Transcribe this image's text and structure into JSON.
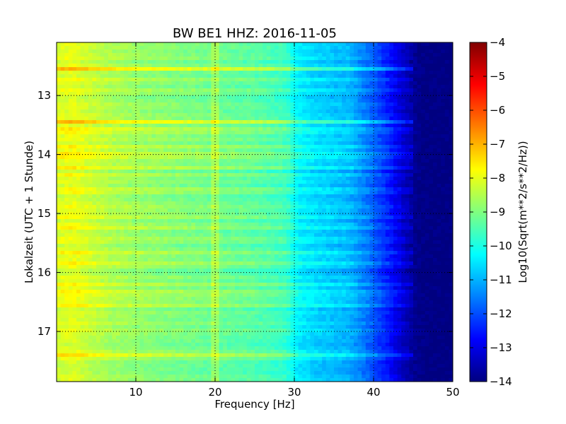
{
  "chart_data": {
    "type": "heatmap",
    "title": "BW BE1 HHZ: 2016-11-05",
    "xlabel": "Frequency [Hz]",
    "ylabel": "Lokalzeit (UTC + 1 Stunde)",
    "xlim": [
      0,
      50
    ],
    "ylim": [
      12.1,
      17.85
    ],
    "y_inverted": true,
    "x_ticks": [
      10,
      20,
      30,
      40,
      50
    ],
    "x_tick_labels": [
      "10",
      "20",
      "30",
      "40",
      "50"
    ],
    "y_ticks": [
      13,
      14,
      15,
      16,
      17
    ],
    "y_tick_labels": [
      "13",
      "14",
      "15",
      "16",
      "17"
    ],
    "grid": true,
    "colormap": "jet",
    "colorbar": {
      "label": "Log10(Sqrt(m**2/s**2/Hz))",
      "range": [
        -14,
        -4
      ],
      "ticks": [
        -4,
        -5,
        -6,
        -7,
        -8,
        -9,
        -10,
        -11,
        -12,
        -13,
        -14
      ],
      "tick_labels": [
        "−4",
        "−5",
        "−6",
        "−7",
        "−8",
        "−9",
        "−10",
        "−11",
        "−12",
        "−13",
        "−14"
      ]
    },
    "spectrum_profile": {
      "frequencies": [
        0,
        2,
        4,
        7,
        10,
        15,
        20,
        25,
        29,
        30.5,
        33,
        37,
        40,
        42,
        44,
        45.5,
        47,
        50
      ],
      "log_amplitude": [
        -8.2,
        -8.0,
        -8.3,
        -8.6,
        -8.8,
        -9.0,
        -9.2,
        -9.4,
        -9.7,
        -10.4,
        -10.7,
        -11.0,
        -11.9,
        -12.6,
        -13.4,
        -13.9,
        -14.0,
        -14.0
      ]
    },
    "bright_bands": {
      "times": [
        12.55,
        12.75,
        12.9,
        13.45,
        13.6,
        13.72,
        13.85,
        14.0,
        14.05,
        14.2,
        14.35,
        14.62,
        14.85,
        15.05,
        15.25,
        15.45,
        15.65,
        15.85,
        16.18,
        16.35,
        16.55,
        16.7,
        17.42
      ],
      "boost": [
        1.0,
        0.5,
        0.4,
        1.1,
        1.0,
        0.6,
        0.5,
        0.7,
        0.4,
        0.8,
        0.5,
        0.9,
        0.4,
        0.4,
        0.4,
        0.5,
        0.4,
        0.4,
        0.7,
        0.7,
        0.4,
        0.3,
        0.8
      ]
    }
  }
}
